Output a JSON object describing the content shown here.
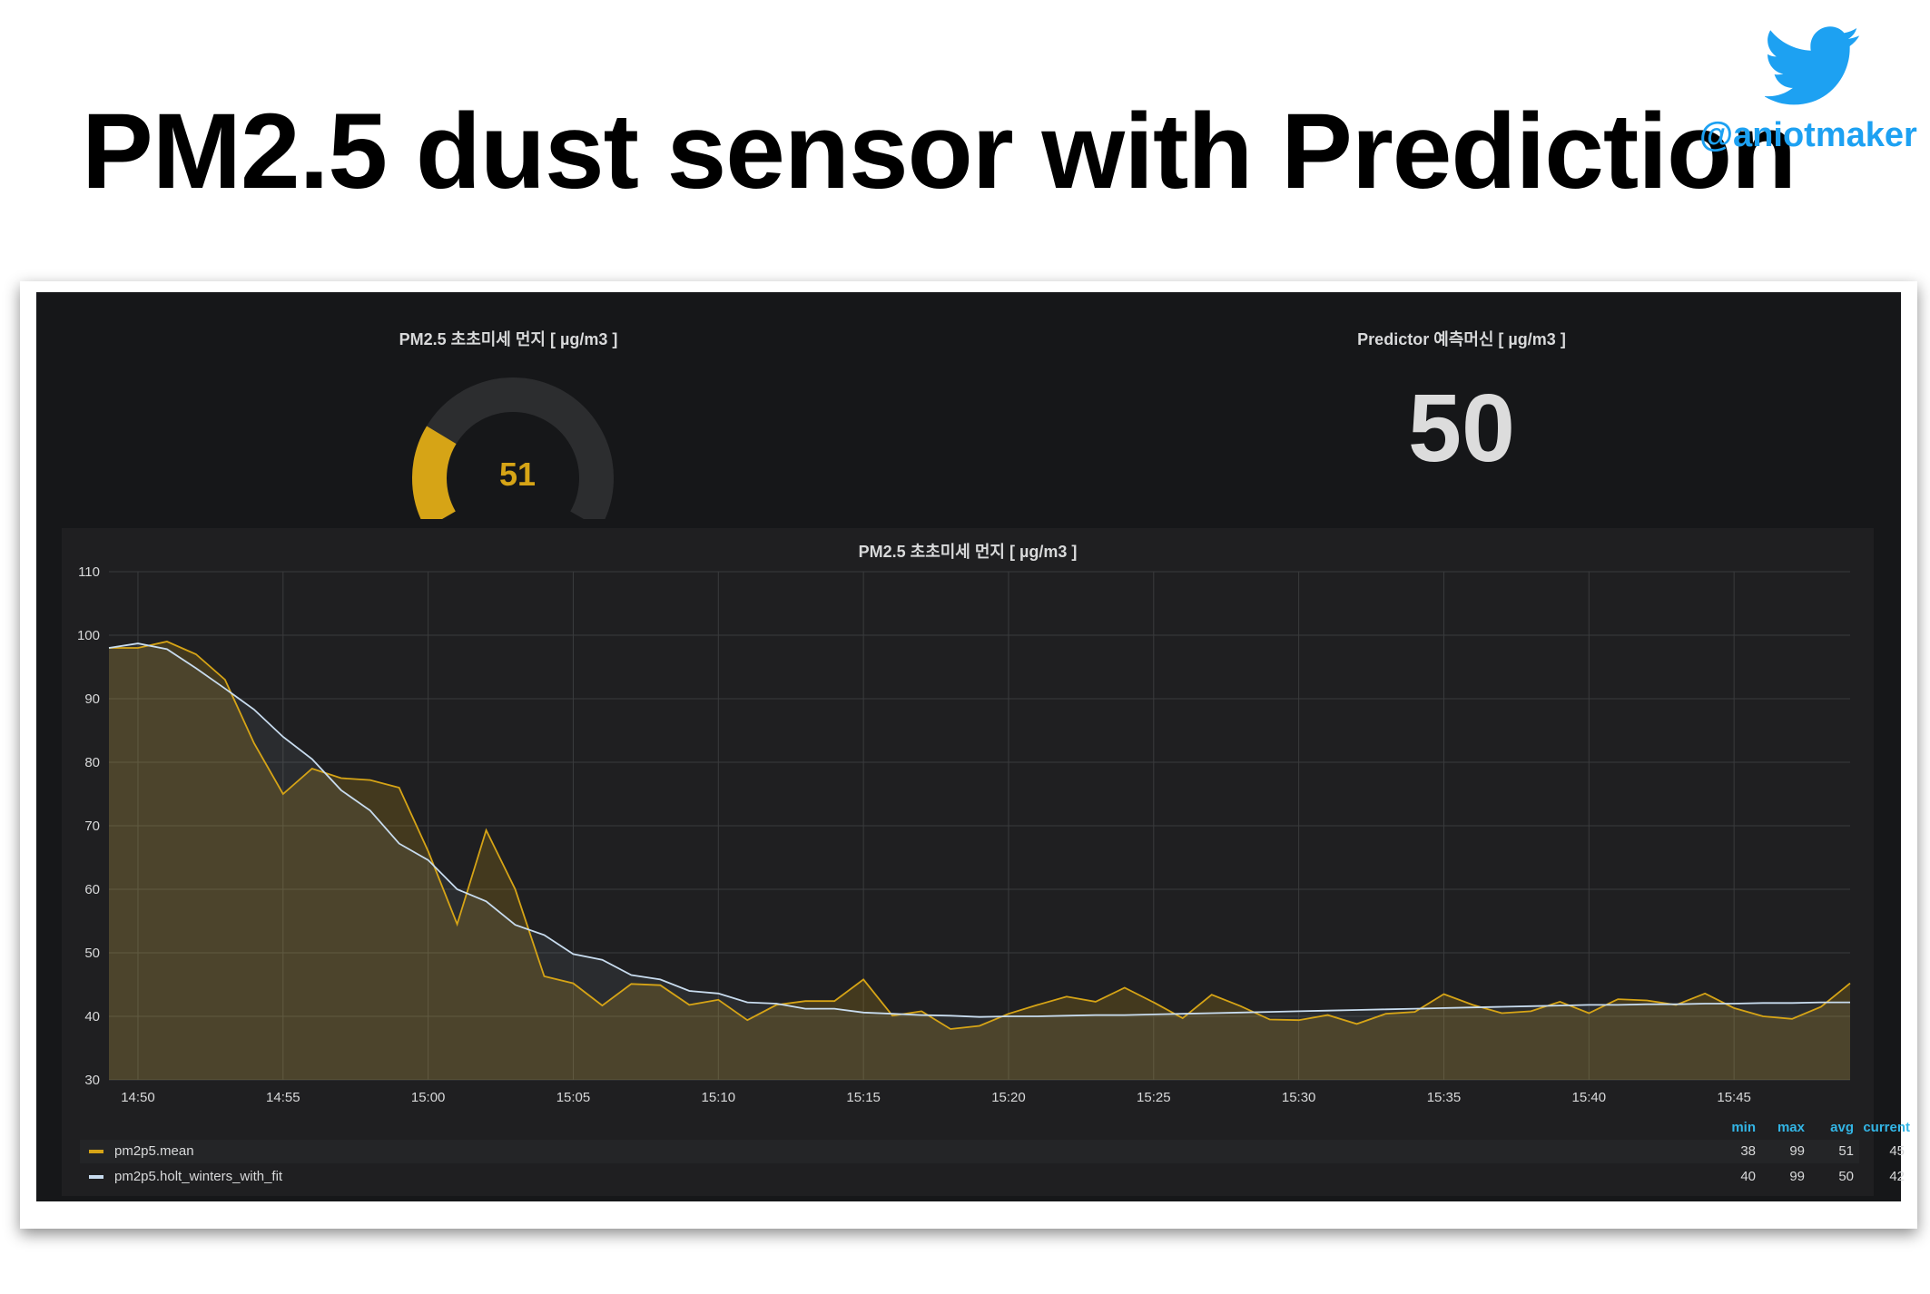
{
  "slide": {
    "title": "PM2.5 dust sensor with Prediction",
    "twitter_handle": "@aniotmaker",
    "twitter_color": "#1da1f2"
  },
  "gauge_panel": {
    "title": "PM2.5 초초미세 먼지 [ µg/m3 ]",
    "value": "51",
    "fraction": 0.255,
    "value_color": "#d6a416",
    "track_color": "#2c2d2f"
  },
  "predictor_panel": {
    "title": "Predictor 예측머신 [ µg/m3 ]",
    "value": "50"
  },
  "graph_panel": {
    "title": "PM2.5 초초미세 먼지 [ µg/m3 ]",
    "legend": {
      "headers": [
        "min",
        "max",
        "avg",
        "current"
      ],
      "rows": [
        {
          "name": "pm2p5.mean",
          "color": "#d6a416",
          "min": "38",
          "max": "99",
          "avg": "51",
          "current": "45"
        },
        {
          "name": "pm2p5.holt_winters_with_fit",
          "color": "#c8dcef",
          "min": "40",
          "max": "99",
          "avg": "50",
          "current": "42"
        }
      ]
    }
  },
  "chart_data": {
    "type": "line",
    "title": "PM2.5 초초미세 먼지 [ µg/m3 ]",
    "xlabel": "",
    "ylabel": "",
    "ylim": [
      30,
      110
    ],
    "yticks": [
      30,
      40,
      50,
      60,
      70,
      80,
      90,
      100,
      110
    ],
    "xlim": [
      "14:49",
      "14:49"
    ],
    "x_start": "14:49",
    "x_end": "15:49",
    "xticks": [
      "14:50",
      "14:55",
      "15:00",
      "15:05",
      "15:10",
      "15:15",
      "15:20",
      "15:25",
      "15:30",
      "15:35",
      "15:40",
      "15:45"
    ],
    "grid": true,
    "legend_position": "bottom",
    "series": [
      {
        "name": "pm2p5.mean",
        "color": "#d6a416",
        "x": [
          "14:49",
          "14:50",
          "14:51",
          "14:52",
          "14:53",
          "14:54",
          "14:55",
          "14:56",
          "14:57",
          "14:58",
          "14:59",
          "15:00",
          "15:01",
          "15:02",
          "15:03",
          "15:04",
          "15:05",
          "15:06",
          "15:07",
          "15:08",
          "15:09",
          "15:10",
          "15:11",
          "15:12",
          "15:13",
          "15:14",
          "15:15",
          "15:16",
          "15:17",
          "15:18",
          "15:19",
          "15:20",
          "15:21",
          "15:22",
          "15:23",
          "15:24",
          "15:25",
          "15:26",
          "15:27",
          "15:28",
          "15:29",
          "15:30",
          "15:31",
          "15:32",
          "15:33",
          "15:34",
          "15:35",
          "15:36",
          "15:37",
          "15:38",
          "15:39",
          "15:40",
          "15:41",
          "15:42",
          "15:43",
          "15:44",
          "15:45",
          "15:46",
          "15:47",
          "15:48",
          "15:49"
        ],
        "values": [
          98,
          98,
          99,
          97,
          93,
          83,
          75,
          79,
          77.5,
          77.2,
          76,
          66,
          54.5,
          69.3,
          60,
          46.3,
          45.2,
          41.7,
          45.1,
          44.9,
          41.8,
          42.6,
          39.4,
          41.8,
          42.4,
          42.4,
          45.8,
          40.1,
          40.8,
          38,
          38.5,
          40.4,
          41.8,
          43.1,
          42.3,
          44.5,
          42.2,
          39.7,
          43.4,
          41.6,
          39.5,
          39.4,
          40.2,
          38.8,
          40.4,
          40.7,
          43.5,
          41.8,
          40.5,
          40.8,
          42.3,
          40.5,
          42.7,
          42.5,
          41.8,
          43.6,
          41.3,
          40,
          39.6,
          41.5,
          45.2
        ]
      },
      {
        "name": "pm2p5.holt_winters_with_fit",
        "color": "#c8dcef",
        "x": [
          "14:49",
          "14:50",
          "14:51",
          "14:52",
          "14:53",
          "14:54",
          "14:55",
          "14:56",
          "14:57",
          "14:58",
          "14:59",
          "15:00",
          "15:01",
          "15:02",
          "15:03",
          "15:04",
          "15:05",
          "15:06",
          "15:07",
          "15:08",
          "15:09",
          "15:10",
          "15:11",
          "15:12",
          "15:13",
          "15:14",
          "15:15",
          "15:16",
          "15:17",
          "15:18",
          "15:19",
          "15:20",
          "15:21",
          "15:22",
          "15:23",
          "15:24",
          "15:25",
          "15:26",
          "15:27",
          "15:28",
          "15:29",
          "15:30",
          "15:31",
          "15:32",
          "15:33",
          "15:34",
          "15:35",
          "15:36",
          "15:37",
          "15:38",
          "15:39",
          "15:40",
          "15:41",
          "15:42",
          "15:43",
          "15:44",
          "15:45",
          "15:46",
          "15:47",
          "15:48",
          "15:49"
        ],
        "values": [
          98,
          98.7,
          97.8,
          94.8,
          91.6,
          88.3,
          84,
          80.5,
          75.6,
          72.4,
          67.2,
          64.6,
          60,
          58.1,
          54.4,
          52.8,
          49.8,
          48.9,
          46.5,
          45.8,
          44,
          43.6,
          42.2,
          42,
          41.2,
          41.2,
          40.6,
          40.4,
          40.2,
          40.1,
          39.9,
          40,
          40,
          40.1,
          40.2,
          40.2,
          40.3,
          40.4,
          40.5,
          40.6,
          40.7,
          40.8,
          40.9,
          41,
          41.1,
          41.2,
          41.3,
          41.4,
          41.5,
          41.6,
          41.7,
          41.8,
          41.8,
          41.9,
          41.9,
          42,
          42,
          42.1,
          42.1,
          42.2,
          42.2
        ]
      }
    ]
  }
}
